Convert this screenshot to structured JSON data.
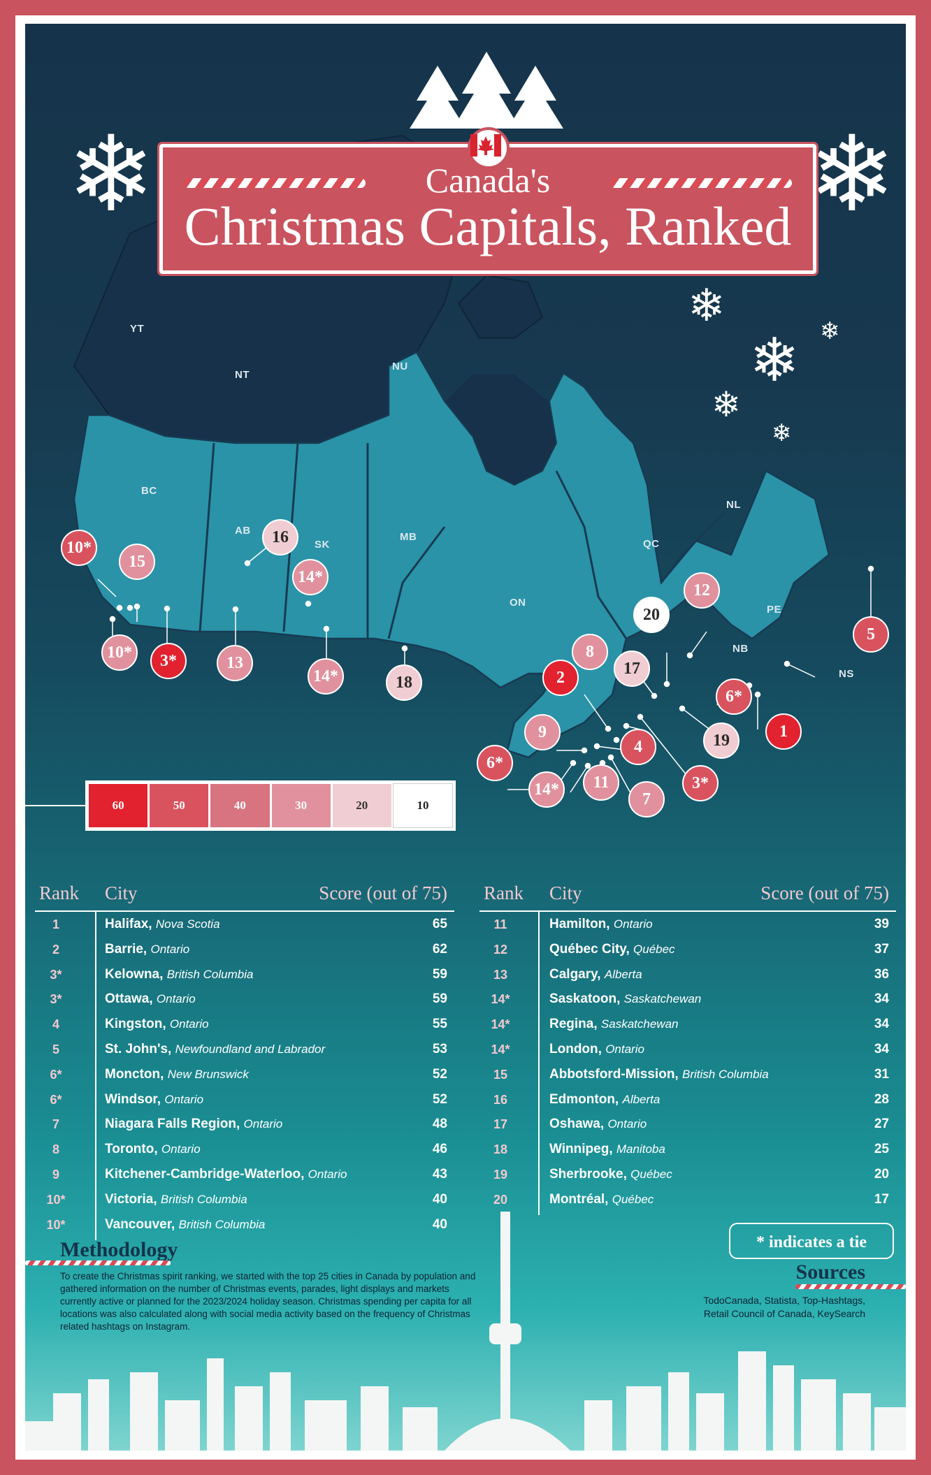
{
  "title": {
    "line1": "Canada's",
    "line2": "Christmas Capitals, Ranked"
  },
  "colors": {
    "red": "#e2222f",
    "rose": "#d9535f",
    "pink": "#e0919d",
    "light": "#f0cdd3",
    "white": "#ffffff",
    "navy": "#15344b",
    "teal": "#2aa9ad"
  },
  "provinces": {
    "yt": "YT",
    "nt": "NT",
    "nu": "NU",
    "bc": "BC",
    "ab": "AB",
    "sk": "SK",
    "mb": "MB",
    "on": "ON",
    "qc": "QC",
    "nl": "NL",
    "pe": "PE",
    "nb": "NB",
    "ns": "NS"
  },
  "markers": [
    "10*",
    "15",
    "16",
    "14*",
    "10*",
    "3*",
    "13",
    "14*",
    "18",
    "12",
    "20",
    "5",
    "8",
    "17",
    "2",
    "6*",
    "19",
    "1",
    "9",
    "4",
    "6*",
    "14*",
    "11",
    "7",
    "3*"
  ],
  "legend": [
    "60",
    "50",
    "40",
    "30",
    "20",
    "10"
  ],
  "table_headers": {
    "rank": "Rank",
    "city": "City",
    "score": "Score (out of 75)"
  },
  "left_table": [
    {
      "rank": "1",
      "city": "Halifax,",
      "region": "Nova Scotia",
      "score": "65"
    },
    {
      "rank": "2",
      "city": "Barrie,",
      "region": "Ontario",
      "score": "62"
    },
    {
      "rank": "3*",
      "city": "Kelowna,",
      "region": "British Columbia",
      "score": "59"
    },
    {
      "rank": "3*",
      "city": "Ottawa,",
      "region": "Ontario",
      "score": "59"
    },
    {
      "rank": "4",
      "city": "Kingston,",
      "region": "Ontario",
      "score": "55"
    },
    {
      "rank": "5",
      "city": "St. John's,",
      "region": "Newfoundland and Labrador",
      "score": "53"
    },
    {
      "rank": "6*",
      "city": "Moncton,",
      "region": "New Brunswick",
      "score": "52"
    },
    {
      "rank": "6*",
      "city": "Windsor,",
      "region": "Ontario",
      "score": "52"
    },
    {
      "rank": "7",
      "city": "Niagara Falls Region,",
      "region": "Ontario",
      "score": "48"
    },
    {
      "rank": "8",
      "city": "Toronto,",
      "region": "Ontario",
      "score": "46"
    },
    {
      "rank": "9",
      "city": "Kitchener-Cambridge-Waterloo,",
      "region": "Ontario",
      "score": "43"
    },
    {
      "rank": "10*",
      "city": "Victoria,",
      "region": "British Columbia",
      "score": "40"
    },
    {
      "rank": "10*",
      "city": "Vancouver,",
      "region": "British Columbia",
      "score": "40"
    }
  ],
  "right_table": [
    {
      "rank": "11",
      "city": "Hamilton,",
      "region": "Ontario",
      "score": "39"
    },
    {
      "rank": "12",
      "city": "Québec City,",
      "region": "Québec",
      "score": "37"
    },
    {
      "rank": "13",
      "city": "Calgary,",
      "region": "Alberta",
      "score": "36"
    },
    {
      "rank": "14*",
      "city": "Saskatoon,",
      "region": "Saskatchewan",
      "score": "34"
    },
    {
      "rank": "14*",
      "city": "Regina,",
      "region": "Saskatchewan",
      "score": "34"
    },
    {
      "rank": "14*",
      "city": "London,",
      "region": "Ontario",
      "score": "34"
    },
    {
      "rank": "15",
      "city": "Abbotsford-Mission,",
      "region": "British Columbia",
      "score": "31"
    },
    {
      "rank": "16",
      "city": "Edmonton,",
      "region": "Alberta",
      "score": "28"
    },
    {
      "rank": "17",
      "city": "Oshawa,",
      "region": "Ontario",
      "score": "27"
    },
    {
      "rank": "18",
      "city": "Winnipeg,",
      "region": "Manitoba",
      "score": "25"
    },
    {
      "rank": "19",
      "city": "Sherbrooke,",
      "region": "Québec",
      "score": "20"
    },
    {
      "rank": "20",
      "city": "Montréal,",
      "region": "Québec",
      "score": "17"
    }
  ],
  "tie_note": "* indicates a tie",
  "methodology": {
    "title": "Methodology",
    "text": "To create the Christmas spirit ranking, we started with the top 25 cities in Canada by population and gathered information on the number of Christmas events, parades, light displays and markets currently active or planned for the 2023/2024 holiday season. Christmas spending per capita for all locations was also calculated along with social media activity based on the frequency of Christmas related hashtags on Instagram."
  },
  "sources": {
    "title": "Sources",
    "line1": "TodoCanada, Statista, Top-Hashtags,",
    "line2": "Retail Council of Canada, KeySearch"
  }
}
